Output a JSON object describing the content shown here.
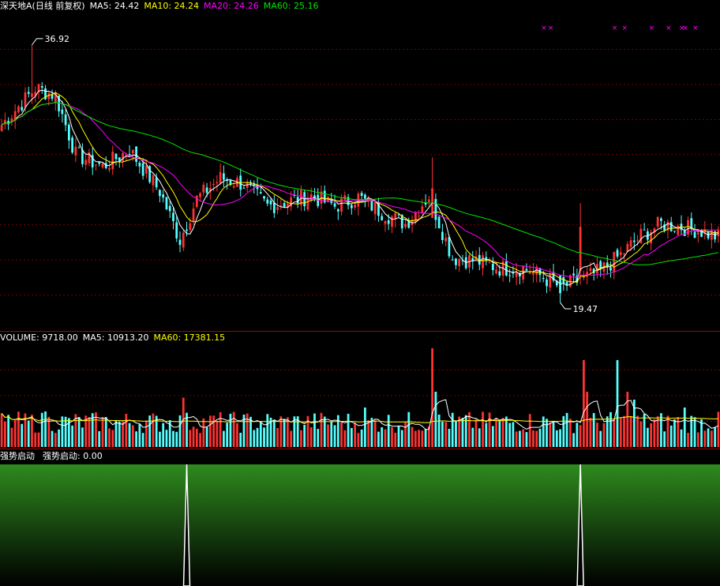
{
  "header": {
    "title": "深天地A(日线 前复权)",
    "ma5": "MA5: 24.42",
    "ma10": "MA10: 24.24",
    "ma20": "MA20: 24.26",
    "ma60": "MA60: 25.16"
  },
  "volume_header": {
    "label": "VOLUME: 9718.00",
    "ma5": "MA5: 10913.20",
    "ma60": "MA60: 17381.15"
  },
  "signal_header": {
    "name": "强势启动",
    "value": "强势启动: 0.00"
  },
  "annotations": {
    "high": "36.92",
    "low": "19.47"
  },
  "colors": {
    "up": "#ff3232",
    "down": "#54ffff",
    "ma5": "#ffffff",
    "ma10": "#ffff00",
    "ma20": "#ff00ff",
    "ma60": "#00e600",
    "grid": "#7a0000",
    "signal_top": "#2e8a1e"
  },
  "chart_data": {
    "type": "candlestick",
    "price_range": [
      17.6,
      39.0
    ],
    "volume_range": [
      0,
      26000
    ],
    "signal_range": [
      0,
      1
    ],
    "key_points": [
      {
        "i": 0,
        "p": 31.5
      },
      {
        "i": 10,
        "p": 34.0
      },
      {
        "i": 16,
        "p": 33.5
      },
      {
        "i": 22,
        "p": 29.5
      },
      {
        "i": 30,
        "p": 28.7
      },
      {
        "i": 38,
        "p": 29.8
      },
      {
        "i": 47,
        "p": 27.0
      },
      {
        "i": 53,
        "p": 23.7
      },
      {
        "i": 58,
        "p": 26.5
      },
      {
        "i": 65,
        "p": 27.9
      },
      {
        "i": 72,
        "p": 27.5
      },
      {
        "i": 79,
        "p": 26.0
      },
      {
        "i": 85,
        "p": 26.3
      },
      {
        "i": 92,
        "p": 26.7
      },
      {
        "i": 99,
        "p": 26.0
      },
      {
        "i": 106,
        "p": 26.6
      },
      {
        "i": 113,
        "p": 25.6
      },
      {
        "i": 120,
        "p": 24.8
      },
      {
        "i": 127,
        "p": 26.7
      },
      {
        "i": 134,
        "p": 22.5
      },
      {
        "i": 141,
        "p": 22.3
      },
      {
        "i": 148,
        "p": 21.8
      },
      {
        "i": 155,
        "p": 21.8
      },
      {
        "i": 160,
        "p": 21.3
      },
      {
        "i": 166,
        "p": 20.5
      },
      {
        "i": 172,
        "p": 21.0
      },
      {
        "i": 178,
        "p": 21.6
      },
      {
        "i": 184,
        "p": 22.7
      },
      {
        "i": 190,
        "p": 24.0
      },
      {
        "i": 196,
        "p": 24.8
      },
      {
        "i": 202,
        "p": 24.6
      },
      {
        "i": 208,
        "p": 24.3
      },
      {
        "i": 213,
        "p": 23.9
      }
    ],
    "low_index": 166,
    "high_index": 9,
    "volume_spikes": [
      {
        "i": 7,
        "v": 8500
      },
      {
        "i": 13,
        "v": 9000
      },
      {
        "i": 54,
        "v": 12500
      },
      {
        "i": 108,
        "v": 10000
      },
      {
        "i": 128,
        "v": 25000
      },
      {
        "i": 129,
        "v": 14000
      },
      {
        "i": 173,
        "v": 22000
      },
      {
        "i": 174,
        "v": 14000
      },
      {
        "i": 183,
        "v": 22000
      },
      {
        "i": 186,
        "v": 14000
      },
      {
        "i": 188,
        "v": 12000
      },
      {
        "i": 203,
        "v": 10000
      }
    ],
    "signal_spikes": [
      55,
      172
    ],
    "marker_indices": [
      161,
      163,
      182,
      185,
      193,
      198,
      202,
      203,
      206
    ],
    "signal_value": 0.0
  }
}
